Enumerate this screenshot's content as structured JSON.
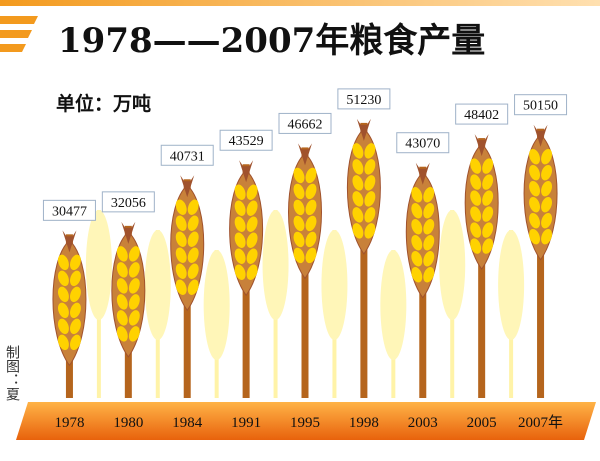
{
  "chart_data": {
    "type": "pictograph",
    "title": "1978——2007年粮食产量",
    "subtitle": "单位：万吨",
    "credit": "制图：夏",
    "categories": [
      "1978",
      "1980",
      "1984",
      "1991",
      "1995",
      "1998",
      "2003",
      "2005",
      "2007年"
    ],
    "values": [
      30477,
      32056,
      40731,
      43529,
      46662,
      51230,
      43070,
      48402,
      50150
    ],
    "color": "#b5651d"
  }
}
